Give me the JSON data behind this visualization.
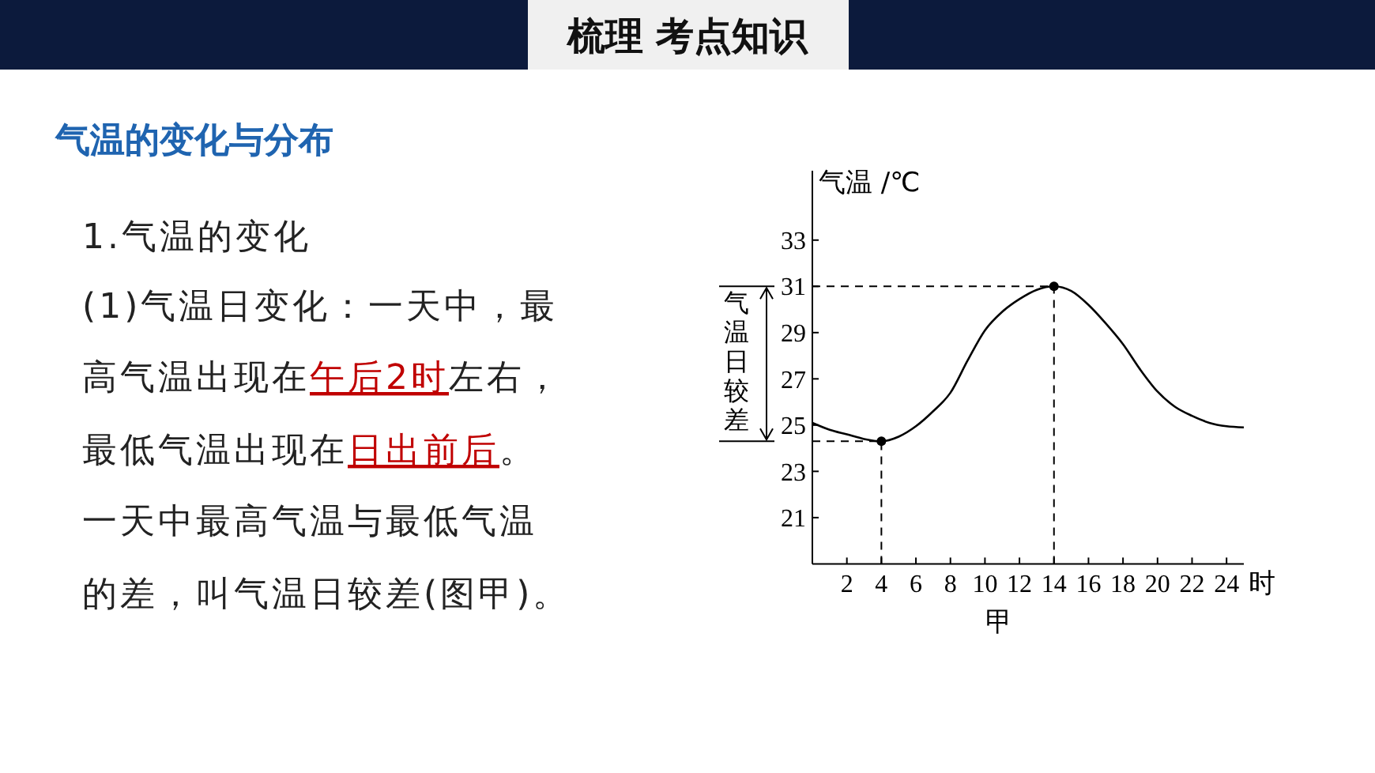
{
  "chart_data": {
    "type": "line",
    "title": "梳理 考点知识",
    "subtitle": "气温的变化与分布",
    "ylabel": "气温 /℃",
    "xlabel": "时",
    "annotations": [
      "1.气温的变化",
      "(1)气温日变化：一天中，最",
      "高气温出现在",
      "午后2时",
      "左右，",
      "最低气温出现在",
      "日出前后",
      "。",
      "一天中最高气温与最低气温",
      "的差，叫气温日较差(图甲)。",
      "气温日较差",
      "甲"
    ],
    "xlim": [
      0,
      25
    ],
    "xticks": [
      2,
      4,
      6,
      8,
      10,
      12,
      14,
      16,
      18,
      20,
      22,
      24
    ],
    "ylim": [
      19,
      36
    ],
    "yticks": [
      21,
      23,
      25,
      27,
      29,
      31,
      33
    ],
    "grid": false,
    "series": [
      {
        "x": [
          0,
          1,
          2,
          3,
          4,
          5,
          6,
          7,
          8,
          9,
          10,
          11,
          12,
          13,
          14,
          15,
          16,
          17,
          18,
          19,
          20,
          21,
          22,
          23,
          24,
          25
        ],
        "values": [
          25.1,
          24.8,
          24.6,
          24.4,
          24.3,
          24.5,
          24.95,
          25.6,
          26.4,
          27.8,
          29.1,
          29.9,
          30.45,
          30.85,
          31,
          30.8,
          30.2,
          29.4,
          28.5,
          27.4,
          26.45,
          25.8,
          25.4,
          25.1,
          24.95,
          24.9
        ],
        "color": "#000000",
        "line_style": "solid"
      },
      {
        "type": "scatter",
        "x": [
          4,
          14
        ],
        "values": [
          24.3,
          31
        ],
        "color": "#000000",
        "marker": "circle"
      }
    ],
    "ref_lines": [
      {
        "axis": "y",
        "value": 31,
        "line_style": "dashed"
      },
      {
        "axis": "y",
        "value": 24.3,
        "line_style": "dashed"
      },
      {
        "axis": "x",
        "value": 4,
        "line_style": "dashed"
      },
      {
        "axis": "x",
        "value": 14,
        "line_style": "dashed"
      }
    ]
  }
}
